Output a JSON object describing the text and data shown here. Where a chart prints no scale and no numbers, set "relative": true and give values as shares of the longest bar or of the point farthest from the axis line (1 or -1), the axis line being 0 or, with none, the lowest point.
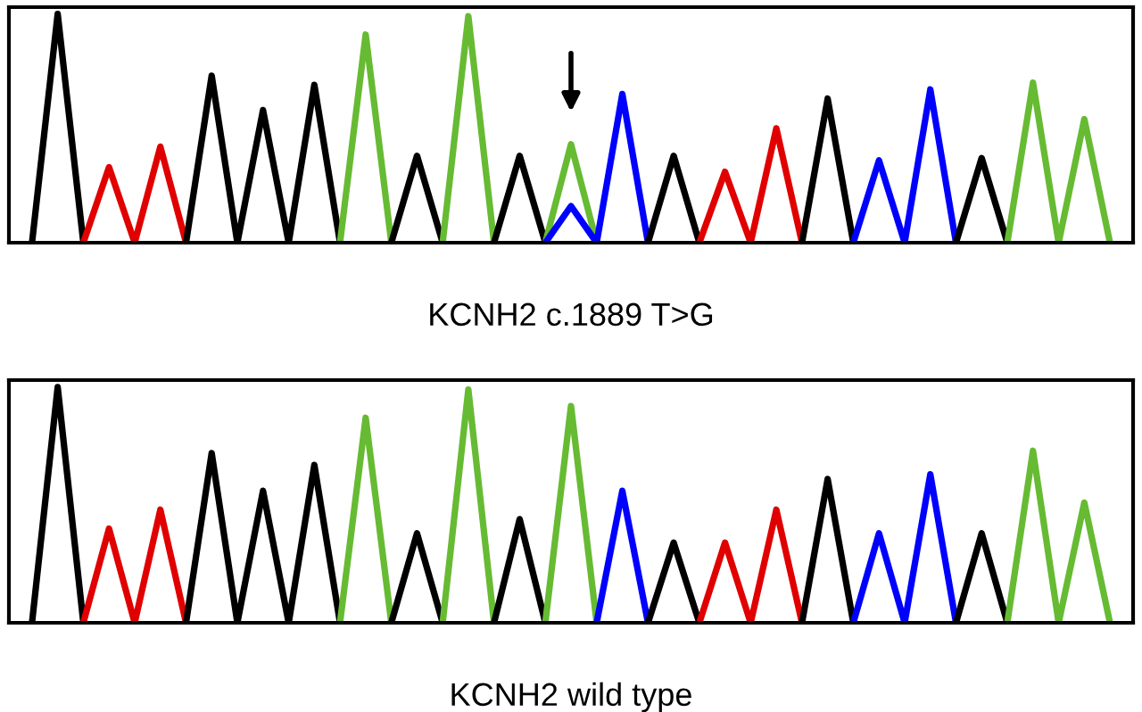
{
  "chart_data": [
    {
      "type": "line",
      "relative": true,
      "tick_labels": false,
      "xlabel": "KCNH2 c.1889 T>G",
      "categories": [
        null,
        null,
        null,
        null,
        null,
        null,
        null,
        null,
        null,
        null,
        null,
        null,
        null,
        null,
        null,
        null,
        null,
        null,
        null,
        null,
        null,
        null,
        null,
        null,
        null,
        null,
        null,
        null,
        null,
        null,
        null,
        null,
        null,
        null,
        null,
        null,
        null,
        null,
        null,
        null,
        null,
        null,
        null
      ],
      "series": [
        {
          "color": "#000000",
          "values": [
            0,
            1.0,
            0,
            null,
            null,
            null,
            null,
            null,
            null,
            null,
            null,
            null,
            null,
            null,
            null,
            null,
            null,
            null,
            null,
            null,
            null,
            null,
            null,
            null,
            null,
            null,
            null,
            null,
            null,
            null,
            null,
            null,
            null,
            null,
            null,
            null,
            null,
            null,
            null,
            null,
            null,
            null,
            null
          ]
        },
        {
          "color": "#e00000",
          "values": [
            null,
            null,
            0,
            0.33,
            0,
            0.42,
            0,
            null,
            null,
            null,
            null,
            null,
            null,
            null,
            null,
            null,
            null,
            null,
            null,
            null,
            null,
            null,
            null,
            null,
            null,
            null,
            null,
            null,
            null,
            null,
            null,
            null,
            null,
            null,
            null,
            null,
            null,
            null,
            null,
            null,
            null,
            null,
            null
          ]
        },
        {
          "color": "#000000",
          "values": [
            null,
            null,
            null,
            null,
            null,
            null,
            0,
            0.73,
            0,
            0.58,
            0,
            0.69,
            0,
            null,
            null,
            null,
            null,
            null,
            null,
            null,
            null,
            null,
            null,
            null,
            null,
            null,
            null,
            null,
            null,
            null,
            null,
            null,
            null,
            null,
            null,
            null,
            null,
            null,
            null,
            null,
            null,
            null,
            null
          ]
        },
        {
          "color": "#66bb33",
          "values": [
            null,
            null,
            null,
            null,
            null,
            null,
            null,
            null,
            null,
            null,
            null,
            null,
            0,
            0.91,
            0,
            null,
            null,
            null,
            null,
            null,
            null,
            null,
            null,
            null,
            null,
            null,
            null,
            null,
            null,
            null,
            null,
            null,
            null,
            null,
            null,
            null,
            null,
            null,
            null,
            null,
            null,
            null,
            null
          ]
        },
        {
          "color": "#000000",
          "values": [
            null,
            null,
            null,
            null,
            null,
            null,
            null,
            null,
            null,
            null,
            null,
            null,
            null,
            null,
            0,
            0.38,
            0,
            null,
            null,
            null,
            null,
            null,
            null,
            null,
            null,
            null,
            null,
            null,
            null,
            null,
            null,
            null,
            null,
            null,
            null,
            null,
            null,
            null,
            null,
            null,
            null,
            null,
            null
          ]
        },
        {
          "color": "#66bb33",
          "values": [
            null,
            null,
            null,
            null,
            null,
            null,
            null,
            null,
            null,
            null,
            null,
            null,
            null,
            null,
            null,
            null,
            0,
            0.99,
            0,
            null,
            null,
            null,
            null,
            null,
            null,
            null,
            null,
            null,
            null,
            null,
            null,
            null,
            null,
            null,
            null,
            null,
            null,
            null,
            null,
            null,
            null,
            null,
            null
          ]
        },
        {
          "color": "#000000",
          "values": [
            null,
            null,
            null,
            null,
            null,
            null,
            null,
            null,
            null,
            null,
            null,
            null,
            null,
            null,
            null,
            null,
            null,
            null,
            0,
            0.38,
            0,
            null,
            null,
            null,
            null,
            null,
            null,
            null,
            null,
            null,
            null,
            null,
            null,
            null,
            null,
            null,
            null,
            null,
            null,
            null,
            null,
            null,
            null
          ]
        },
        {
          "color": "#66bb33",
          "values": [
            null,
            null,
            null,
            null,
            null,
            null,
            null,
            null,
            null,
            null,
            null,
            null,
            null,
            null,
            null,
            null,
            null,
            null,
            null,
            null,
            0,
            0.43,
            0,
            null,
            null,
            null,
            null,
            null,
            null,
            null,
            null,
            null,
            null,
            null,
            null,
            null,
            null,
            null,
            null,
            null,
            null,
            null,
            null
          ]
        },
        {
          "color": "#0000ff",
          "values": [
            null,
            null,
            null,
            null,
            null,
            null,
            null,
            null,
            null,
            null,
            null,
            null,
            null,
            null,
            null,
            null,
            null,
            null,
            null,
            null,
            0,
            0.16,
            0,
            0.65,
            0,
            null,
            null,
            null,
            null,
            null,
            null,
            null,
            null,
            null,
            null,
            null,
            null,
            null,
            null,
            null,
            null,
            null,
            null
          ]
        },
        {
          "color": "#000000",
          "values": [
            null,
            null,
            null,
            null,
            null,
            null,
            null,
            null,
            null,
            null,
            null,
            null,
            null,
            null,
            null,
            null,
            null,
            null,
            null,
            null,
            null,
            null,
            null,
            null,
            0,
            0.38,
            0,
            null,
            null,
            null,
            null,
            null,
            null,
            null,
            null,
            null,
            null,
            null,
            null,
            null,
            null,
            null,
            null
          ]
        },
        {
          "color": "#e00000",
          "values": [
            null,
            null,
            null,
            null,
            null,
            null,
            null,
            null,
            null,
            null,
            null,
            null,
            null,
            null,
            null,
            null,
            null,
            null,
            null,
            null,
            null,
            null,
            null,
            null,
            null,
            null,
            0,
            0.31,
            0,
            0.5,
            0,
            null,
            null,
            null,
            null,
            null,
            null,
            null,
            null,
            null,
            null,
            null,
            null
          ]
        },
        {
          "color": "#000000",
          "values": [
            null,
            null,
            null,
            null,
            null,
            null,
            null,
            null,
            null,
            null,
            null,
            null,
            null,
            null,
            null,
            null,
            null,
            null,
            null,
            null,
            null,
            null,
            null,
            null,
            null,
            null,
            null,
            null,
            null,
            null,
            0,
            0.63,
            0,
            null,
            null,
            null,
            null,
            null,
            null,
            null,
            null,
            null,
            null
          ]
        },
        {
          "color": "#0000ff",
          "values": [
            null,
            null,
            null,
            null,
            null,
            null,
            null,
            null,
            null,
            null,
            null,
            null,
            null,
            null,
            null,
            null,
            null,
            null,
            null,
            null,
            null,
            null,
            null,
            null,
            null,
            null,
            null,
            null,
            null,
            null,
            null,
            null,
            0,
            0.36,
            0,
            0.67,
            0,
            null,
            null,
            null,
            null,
            null,
            null
          ]
        },
        {
          "color": "#000000",
          "values": [
            null,
            null,
            null,
            null,
            null,
            null,
            null,
            null,
            null,
            null,
            null,
            null,
            null,
            null,
            null,
            null,
            null,
            null,
            null,
            null,
            null,
            null,
            null,
            null,
            null,
            null,
            null,
            null,
            null,
            null,
            null,
            null,
            null,
            null,
            null,
            null,
            0,
            0.37,
            0,
            null,
            null,
            null,
            null
          ]
        },
        {
          "color": "#66bb33",
          "values": [
            null,
            null,
            null,
            null,
            null,
            null,
            null,
            null,
            null,
            null,
            null,
            null,
            null,
            null,
            null,
            null,
            null,
            null,
            null,
            null,
            null,
            null,
            null,
            null,
            null,
            null,
            null,
            null,
            null,
            null,
            null,
            null,
            null,
            null,
            null,
            null,
            null,
            null,
            0,
            0.7,
            0,
            0.54,
            0
          ]
        }
      ]
    },
    {
      "type": "line",
      "relative": true,
      "tick_labels": false,
      "xlabel": "KCNH2 wild type",
      "categories": [
        null,
        null,
        null,
        null,
        null,
        null,
        null,
        null,
        null,
        null,
        null,
        null,
        null,
        null,
        null,
        null,
        null,
        null,
        null,
        null,
        null,
        null,
        null,
        null,
        null,
        null,
        null,
        null,
        null,
        null,
        null,
        null,
        null,
        null,
        null,
        null,
        null,
        null,
        null,
        null,
        null,
        null,
        null
      ],
      "series": [
        {
          "color": "#000000",
          "values": [
            0,
            1.0,
            0,
            null,
            null,
            null,
            null,
            null,
            null,
            null,
            null,
            null,
            null,
            null,
            null,
            null,
            null,
            null,
            null,
            null,
            null,
            null,
            null,
            null,
            null,
            null,
            null,
            null,
            null,
            null,
            null,
            null,
            null,
            null,
            null,
            null,
            null,
            null,
            null,
            null,
            null,
            null,
            null
          ]
        },
        {
          "color": "#e00000",
          "values": [
            null,
            null,
            0,
            0.4,
            0,
            0.48,
            0,
            null,
            null,
            null,
            null,
            null,
            null,
            null,
            null,
            null,
            null,
            null,
            null,
            null,
            null,
            null,
            null,
            null,
            null,
            null,
            null,
            null,
            null,
            null,
            null,
            null,
            null,
            null,
            null,
            null,
            null,
            null,
            null,
            null,
            null,
            null,
            null
          ]
        },
        {
          "color": "#000000",
          "values": [
            null,
            null,
            null,
            null,
            null,
            null,
            0,
            0.72,
            0,
            0.56,
            0,
            0.67,
            0,
            null,
            null,
            null,
            null,
            null,
            null,
            null,
            null,
            null,
            null,
            null,
            null,
            null,
            null,
            null,
            null,
            null,
            null,
            null,
            null,
            null,
            null,
            null,
            null,
            null,
            null,
            null,
            null,
            null,
            null
          ]
        },
        {
          "color": "#66bb33",
          "values": [
            null,
            null,
            null,
            null,
            null,
            null,
            null,
            null,
            null,
            null,
            null,
            null,
            0,
            0.87,
            0,
            null,
            null,
            null,
            null,
            null,
            null,
            null,
            null,
            null,
            null,
            null,
            null,
            null,
            null,
            null,
            null,
            null,
            null,
            null,
            null,
            null,
            null,
            null,
            null,
            null,
            null,
            null,
            null
          ]
        },
        {
          "color": "#000000",
          "values": [
            null,
            null,
            null,
            null,
            null,
            null,
            null,
            null,
            null,
            null,
            null,
            null,
            null,
            null,
            0,
            0.38,
            0,
            null,
            null,
            null,
            null,
            null,
            null,
            null,
            null,
            null,
            null,
            null,
            null,
            null,
            null,
            null,
            null,
            null,
            null,
            null,
            null,
            null,
            null,
            null,
            null,
            null,
            null
          ]
        },
        {
          "color": "#66bb33",
          "values": [
            null,
            null,
            null,
            null,
            null,
            null,
            null,
            null,
            null,
            null,
            null,
            null,
            null,
            null,
            null,
            null,
            0,
            0.99,
            0,
            null,
            null,
            null,
            null,
            null,
            null,
            null,
            null,
            null,
            null,
            null,
            null,
            null,
            null,
            null,
            null,
            null,
            null,
            null,
            null,
            null,
            null,
            null,
            null
          ]
        },
        {
          "color": "#000000",
          "values": [
            null,
            null,
            null,
            null,
            null,
            null,
            null,
            null,
            null,
            null,
            null,
            null,
            null,
            null,
            null,
            null,
            null,
            null,
            0,
            0.44,
            0,
            null,
            null,
            null,
            null,
            null,
            null,
            null,
            null,
            null,
            null,
            null,
            null,
            null,
            null,
            null,
            null,
            null,
            null,
            null,
            null,
            null,
            null
          ]
        },
        {
          "color": "#66bb33",
          "values": [
            null,
            null,
            null,
            null,
            null,
            null,
            null,
            null,
            null,
            null,
            null,
            null,
            null,
            null,
            null,
            null,
            null,
            null,
            null,
            null,
            0,
            0.92,
            0,
            null,
            null,
            null,
            null,
            null,
            null,
            null,
            null,
            null,
            null,
            null,
            null,
            null,
            null,
            null,
            null,
            null,
            null,
            null,
            null
          ]
        },
        {
          "color": "#0000ff",
          "values": [
            null,
            null,
            null,
            null,
            null,
            null,
            null,
            null,
            null,
            null,
            null,
            null,
            null,
            null,
            null,
            null,
            null,
            null,
            null,
            null,
            null,
            null,
            0,
            0.56,
            0,
            null,
            null,
            null,
            null,
            null,
            null,
            null,
            null,
            null,
            null,
            null,
            null,
            null,
            null,
            null,
            null,
            null,
            null
          ]
        },
        {
          "color": "#000000",
          "values": [
            null,
            null,
            null,
            null,
            null,
            null,
            null,
            null,
            null,
            null,
            null,
            null,
            null,
            null,
            null,
            null,
            null,
            null,
            null,
            null,
            null,
            null,
            null,
            null,
            0,
            0.34,
            0,
            null,
            null,
            null,
            null,
            null,
            null,
            null,
            null,
            null,
            null,
            null,
            null,
            null,
            null,
            null,
            null
          ]
        },
        {
          "color": "#e00000",
          "values": [
            null,
            null,
            null,
            null,
            null,
            null,
            null,
            null,
            null,
            null,
            null,
            null,
            null,
            null,
            null,
            null,
            null,
            null,
            null,
            null,
            null,
            null,
            null,
            null,
            null,
            null,
            0,
            0.34,
            0,
            0.48,
            0,
            null,
            null,
            null,
            null,
            null,
            null,
            null,
            null,
            null,
            null,
            null,
            null
          ]
        },
        {
          "color": "#000000",
          "values": [
            null,
            null,
            null,
            null,
            null,
            null,
            null,
            null,
            null,
            null,
            null,
            null,
            null,
            null,
            null,
            null,
            null,
            null,
            null,
            null,
            null,
            null,
            null,
            null,
            null,
            null,
            null,
            null,
            null,
            null,
            0,
            0.61,
            0,
            null,
            null,
            null,
            null,
            null,
            null,
            null,
            null,
            null,
            null
          ]
        },
        {
          "color": "#0000ff",
          "values": [
            null,
            null,
            null,
            null,
            null,
            null,
            null,
            null,
            null,
            null,
            null,
            null,
            null,
            null,
            null,
            null,
            null,
            null,
            null,
            null,
            null,
            null,
            null,
            null,
            null,
            null,
            null,
            null,
            null,
            null,
            null,
            null,
            0,
            0.38,
            0,
            0.63,
            0,
            null,
            null,
            null,
            null,
            null,
            null
          ]
        },
        {
          "color": "#000000",
          "values": [
            null,
            null,
            null,
            null,
            null,
            null,
            null,
            null,
            null,
            null,
            null,
            null,
            null,
            null,
            null,
            null,
            null,
            null,
            null,
            null,
            null,
            null,
            null,
            null,
            null,
            null,
            null,
            null,
            null,
            null,
            null,
            null,
            null,
            null,
            null,
            null,
            0,
            0.38,
            0,
            null,
            null,
            null,
            null
          ]
        },
        {
          "color": "#66bb33",
          "values": [
            null,
            null,
            null,
            null,
            null,
            null,
            null,
            null,
            null,
            null,
            null,
            null,
            null,
            null,
            null,
            null,
            null,
            null,
            null,
            null,
            null,
            null,
            null,
            null,
            null,
            null,
            null,
            null,
            null,
            null,
            null,
            null,
            null,
            null,
            null,
            null,
            null,
            null,
            0,
            0.73,
            0,
            0.51,
            0
          ]
        }
      ]
    }
  ]
}
